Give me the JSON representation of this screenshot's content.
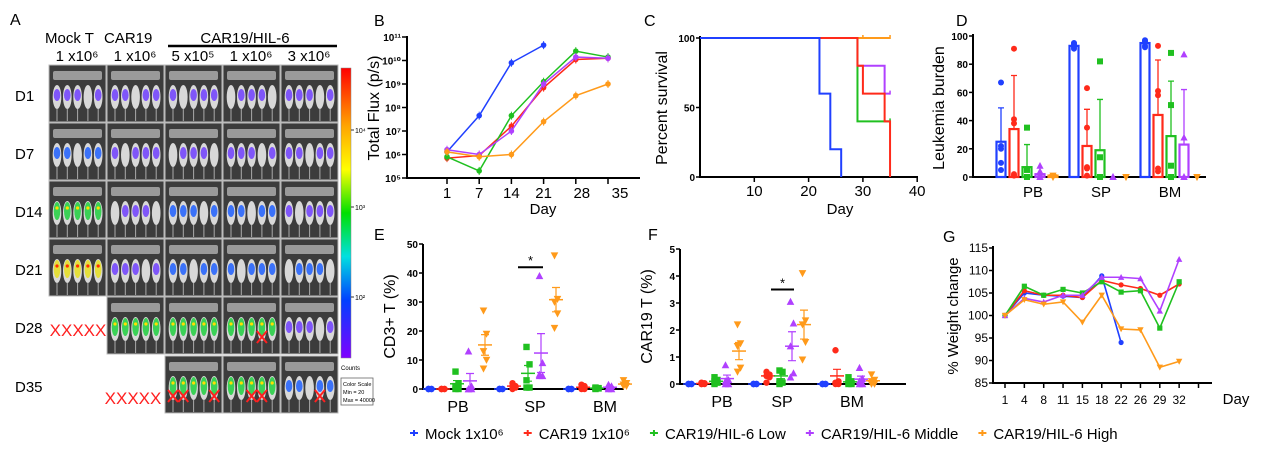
{
  "panel_labels": {
    "A": "A",
    "B": "B",
    "C": "C",
    "D": "D",
    "E": "E",
    "F": "F",
    "G": "G"
  },
  "panel_a": {
    "group_headers": [
      "Mock T",
      "CAR19"
    ],
    "group_header_combined": "CAR19/HIL-6",
    "dose_headers": [
      "1 x10⁶",
      "1 x10⁶",
      "5 x10⁵",
      "1 x10⁶",
      "3 x10⁶"
    ],
    "row_labels": [
      "D1",
      "D7",
      "D14",
      "D21",
      "D28",
      "D35"
    ],
    "missing_marks": {
      "D28": "XXXXX",
      "D35": "XXXXX"
    },
    "deceased_mice": [
      {
        "row": "D28",
        "column": 4,
        "mice": [
          4
        ]
      },
      {
        "row": "D35",
        "column": 3,
        "mice": [
          1,
          2,
          5
        ]
      },
      {
        "row": "D35",
        "column": 4,
        "mice": [
          3,
          4
        ]
      },
      {
        "row": "D35",
        "column": 5,
        "mice": [
          4
        ]
      }
    ],
    "colorbar": {
      "ticks": [
        "10⁴",
        "10³",
        "10²"
      ],
      "unit": "Counts",
      "scale_title": "Color Scale",
      "min": "Min = 20",
      "max": "Max = 40000",
      "colors": [
        "#ff0000",
        "#ffa500",
        "#ffff00",
        "#00e000",
        "#00e0e0",
        "#0040ff",
        "#8000ff"
      ]
    }
  },
  "colors": {
    "mock": "#2040ff",
    "car19": "#ff2a1a",
    "low": "#20c020",
    "middle": "#b040ff",
    "high": "#ff9a1a"
  },
  "legend": [
    {
      "label": "Mock 1x10⁶",
      "color": "#2040ff"
    },
    {
      "label": "CAR19 1x10⁶",
      "color": "#ff2a1a"
    },
    {
      "label": "CAR19/HIL-6 Low",
      "color": "#20c020"
    },
    {
      "label": "CAR19/HIL-6 Middle",
      "color": "#b040ff"
    },
    {
      "label": "CAR19/HIL-6 High",
      "color": "#ff9a1a"
    }
  ],
  "chart_data": [
    {
      "panel": "B",
      "type": "line",
      "ylabel": "Total Flux (p/s)",
      "xlabel": "Day",
      "yscale": "log",
      "ylim": [
        100000.0,
        100000000000.0
      ],
      "y_ticks": [
        "10⁵",
        "10⁶",
        "10⁷",
        "10⁸",
        "10⁹",
        "10¹⁰",
        "10¹¹"
      ],
      "x_ticks": [
        "1",
        "7",
        "14",
        "21",
        "28",
        "35"
      ],
      "series": [
        {
          "name": "Mock 1x10⁶",
          "color": "#2040ff",
          "values": [
            1300000.0,
            45000000.0,
            8000000000.0,
            45000000000.0,
            null,
            null
          ]
        },
        {
          "name": "CAR19 1x10⁶",
          "color": "#ff2a1a",
          "values": [
            700000.0,
            900000.0,
            16000000.0,
            700000000.0,
            11000000000.0,
            12500000000.0
          ]
        },
        {
          "name": "CAR19/HIL-6 Low",
          "color": "#20c020",
          "values": [
            800000.0,
            200000.0,
            45000000.0,
            1250000000.0,
            25000000000.0,
            14000000000.0
          ]
        },
        {
          "name": "CAR19/HIL-6 Middle",
          "color": "#b040ff",
          "values": [
            1600000.0,
            1000000.0,
            10000000.0,
            1000000000.0,
            14000000000.0,
            12500000000.0
          ]
        },
        {
          "name": "CAR19/HIL-6 High",
          "color": "#ff9a1a",
          "values": [
            1300000.0,
            800000.0,
            1000000.0,
            25000000.0,
            320000000.0,
            1000000000.0
          ]
        }
      ]
    },
    {
      "panel": "C",
      "type": "line",
      "subtype": "kaplan-meier",
      "ylabel": "Percent survival",
      "xlabel": "Day",
      "xlim": [
        0,
        40
      ],
      "ylim": [
        0,
        100
      ],
      "x_ticks": [
        "10",
        "20",
        "30",
        "40"
      ],
      "y_ticks": [
        "0",
        "50",
        "100"
      ],
      "series": [
        {
          "name": "Mock 1x10⁶",
          "color": "#2040ff",
          "steps": [
            [
              22,
              60
            ],
            [
              24,
              20
            ],
            [
              26,
              0
            ]
          ],
          "end": 26,
          "censored": []
        },
        {
          "name": "CAR19 1x10⁶",
          "color": "#ff2a1a",
          "steps": [
            [
              29,
              80
            ],
            [
              30,
              60
            ],
            [
              34,
              40
            ],
            [
              35,
              0
            ]
          ],
          "end": 35,
          "censored": []
        },
        {
          "name": "CAR19/HIL-6 Low",
          "color": "#20c020",
          "steps": [
            [
              29,
              40
            ]
          ],
          "end": 35,
          "censored": [
            35
          ]
        },
        {
          "name": "CAR19/HIL-6 Middle",
          "color": "#b040ff",
          "steps": [
            [
              29,
              80
            ],
            [
              34,
              60
            ]
          ],
          "end": 35,
          "censored": [
            35
          ]
        },
        {
          "name": "CAR19/HIL-6 High",
          "color": "#ff9a1a",
          "steps": [],
          "end": 35,
          "censored": [
            30,
            35
          ]
        }
      ]
    },
    {
      "panel": "D",
      "type": "bar",
      "ylabel": "Leukemia burden",
      "ylim": [
        0,
        100
      ],
      "y_ticks": [
        "0",
        "20",
        "40",
        "60",
        "80",
        "100"
      ],
      "categories": [
        "PB",
        "SP",
        "BM"
      ],
      "series": [
        {
          "name": "Mock 1x10⁶",
          "color": "#2040ff",
          "values": [
            25,
            93,
            95
          ],
          "sd": [
            24,
            2,
            2
          ],
          "points": [
            [
              67,
              22,
              20,
              10,
              5
            ],
            [
              95,
              94,
              93,
              92,
              91
            ],
            [
              97,
              96,
              95,
              93,
              92
            ]
          ]
        },
        {
          "name": "CAR19 1x10⁶",
          "color": "#ff2a1a",
          "values": [
            34,
            22,
            44
          ],
          "sd": [
            38,
            26,
            39
          ],
          "points": [
            [
              91,
              41,
              38,
              2,
              1
            ],
            [
              63,
              35,
              7,
              6,
              1
            ],
            [
              93,
              61,
              58,
              6,
              4
            ]
          ]
        },
        {
          "name": "CAR19/HIL-6 Low",
          "color": "#20c020",
          "values": [
            7,
            19,
            29
          ],
          "sd": [
            16,
            36,
            39
          ],
          "points": [
            [
              35,
              5,
              0,
              0,
              0
            ],
            [
              82,
              14,
              0,
              0,
              0
            ],
            [
              88,
              51,
              8,
              0,
              0
            ]
          ]
        },
        {
          "name": "CAR19/HIL-6 Middle",
          "color": "#b040ff",
          "values": [
            2,
            0,
            23
          ],
          "sd": [
            0,
            0,
            39
          ],
          "points": [
            [
              8,
              4,
              2,
              0,
              0
            ],
            [
              0,
              0,
              0,
              0,
              0
            ],
            [
              87,
              28,
              0,
              0,
              0
            ]
          ]
        },
        {
          "name": "CAR19/HIL-6 High",
          "color": "#ff9a1a",
          "values": [
            1,
            0,
            0
          ],
          "sd": [
            0,
            0,
            0
          ],
          "points": [
            [
              1,
              0,
              0,
              0,
              0
            ],
            [
              0,
              0,
              0,
              0,
              0
            ],
            [
              0,
              0,
              0,
              0,
              0
            ]
          ]
        }
      ]
    },
    {
      "panel": "E",
      "type": "scatter",
      "ylabel": "CD3+ T (%)",
      "ylim": [
        0,
        50
      ],
      "y_ticks": [
        "0",
        "10",
        "20",
        "30",
        "40",
        "50"
      ],
      "categories": [
        "PB",
        "SP",
        "BM"
      ],
      "significance": {
        "category": "SP",
        "between": [
          "CAR19/HIL-6 Low",
          "CAR19/HIL-6 Middle"
        ],
        "label": "*",
        "y": 42
      },
      "series": [
        {
          "name": "Mock 1x10⁶",
          "color": "#2040ff",
          "marker": "circle",
          "means": [
            0,
            0,
            0
          ],
          "points": [
            [
              0,
              0,
              0,
              0,
              0
            ],
            [
              0,
              0,
              0,
              0,
              0
            ],
            [
              0,
              0,
              0,
              0,
              0
            ]
          ]
        },
        {
          "name": "CAR19 1x10⁶",
          "color": "#ff2a1a",
          "marker": "circle",
          "means": [
            0,
            1,
            0.6
          ],
          "points": [
            [
              0,
              0,
              0,
              0,
              0
            ],
            [
              2,
              1,
              1,
              0.5,
              0
            ],
            [
              1.5,
              1,
              0.5,
              0,
              0
            ]
          ]
        },
        {
          "name": "CAR19/HIL-6 Low",
          "color": "#20c020",
          "marker": "square",
          "means": [
            1.8,
            5.4,
            0.3
          ],
          "points": [
            [
              6,
              2,
              1,
              0,
              0
            ],
            [
              14.5,
              8.5,
              3,
              0.5,
              0.5
            ],
            [
              0.5,
              0.3,
              0.3,
              0.2,
              0
            ]
          ]
        },
        {
          "name": "CAR19/HIL-6 Middle",
          "color": "#b040ff",
          "marker": "triangle-up",
          "means": [
            2.8,
            12.4,
            0.6
          ],
          "points": [
            [
              13,
              1,
              0,
              0,
              0
            ],
            [
              39,
              9,
              5,
              4.5,
              4.5
            ],
            [
              1.5,
              1,
              0.5,
              0,
              0
            ]
          ]
        },
        {
          "name": "CAR19/HIL-6 High",
          "color": "#ff9a1a",
          "marker": "triangle-down",
          "means": [
            15.2,
            30.8,
            1.7
          ],
          "points": [
            [
              27,
              19,
              13,
              10,
              7
            ],
            [
              46,
              31,
              30,
              26,
              21
            ],
            [
              3,
              2,
              1.5,
              1,
              1
            ]
          ]
        }
      ]
    },
    {
      "panel": "F",
      "type": "scatter",
      "ylabel": "CAR19 T (%)",
      "ylim": [
        0,
        5
      ],
      "y_ticks": [
        "0",
        "1",
        "2",
        "3",
        "4",
        "5"
      ],
      "categories": [
        "PB",
        "SP",
        "BM"
      ],
      "significance": {
        "category": "SP",
        "between": [
          "CAR19/HIL-6 Low",
          "CAR19/HIL-6 Middle"
        ],
        "label": "*",
        "y": 3.5
      },
      "series": [
        {
          "name": "Mock 1x10⁶",
          "color": "#2040ff",
          "marker": "circle",
          "means": [
            0,
            0,
            0
          ],
          "points": [
            [
              0,
              0,
              0,
              0,
              0
            ],
            [
              0,
              0,
              0,
              0,
              0
            ],
            [
              0,
              0,
              0,
              0,
              0
            ]
          ]
        },
        {
          "name": "CAR19 1x10⁶",
          "color": "#ff2a1a",
          "marker": "circle",
          "means": [
            0.02,
            0.3,
            0.3
          ],
          "points": [
            [
              0.05,
              0.03,
              0,
              0,
              0
            ],
            [
              0.45,
              0.35,
              0.3,
              0.25,
              0.05
            ],
            [
              1.25,
              0.1,
              0.05,
              0,
              0
            ]
          ]
        },
        {
          "name": "CAR19/HIL-6 Low",
          "color": "#20c020",
          "marker": "square",
          "means": [
            0.1,
            0.3,
            0.08
          ],
          "points": [
            [
              0.25,
              0.15,
              0.1,
              0.05,
              0
            ],
            [
              0.5,
              0.45,
              0.1,
              0.05,
              0
            ],
            [
              0.25,
              0.1,
              0.05,
              0,
              0
            ]
          ]
        },
        {
          "name": "CAR19/HIL-6 Middle",
          "color": "#b040ff",
          "marker": "triangle-up",
          "means": [
            0.2,
            1.4,
            0.18
          ],
          "points": [
            [
              0.7,
              0.15,
              0.1,
              0,
              0
            ],
            [
              3.05,
              2.25,
              1.4,
              0.4,
              0.25
            ],
            [
              0.6,
              0.2,
              0.1,
              0,
              0
            ]
          ]
        },
        {
          "name": "CAR19/HIL-6 High",
          "color": "#ff9a1a",
          "marker": "triangle-down",
          "means": [
            1.22,
            2.2,
            0.12
          ],
          "points": [
            [
              2.2,
              1.5,
              1.4,
              0.6,
              0.45
            ],
            [
              4.1,
              2.35,
              2.2,
              1.55,
              0.9
            ],
            [
              0.35,
              0.15,
              0.1,
              0,
              0
            ]
          ]
        }
      ]
    },
    {
      "panel": "G",
      "type": "line",
      "ylabel": "% Weight change",
      "xlabel": "Day",
      "ylim": [
        85,
        115
      ],
      "y_ticks": [
        "85",
        "90",
        "95",
        "100",
        "105",
        "110",
        "115"
      ],
      "x_ticks": [
        "1",
        "4",
        "8",
        "11",
        "15",
        "18",
        "22",
        "26",
        "29",
        "32"
      ],
      "series": [
        {
          "name": "Mock 1x10⁶",
          "color": "#2040ff",
          "values": [
            100,
            105,
            104.5,
            104.3,
            104,
            108.8,
            94,
            null,
            null,
            null
          ]
        },
        {
          "name": "CAR19 1x10⁶",
          "color": "#ff2a1a",
          "values": [
            100,
            105.5,
            104.5,
            104.5,
            104,
            107.8,
            106.8,
            106,
            104.5,
            107
          ]
        },
        {
          "name": "CAR19/HIL-6 Low",
          "color": "#20c020",
          "values": [
            100,
            106.5,
            104.5,
            105.8,
            105,
            107.5,
            105.2,
            105.5,
            97.2,
            107.5
          ]
        },
        {
          "name": "CAR19/HIL-6 Middle",
          "color": "#b040ff",
          "values": [
            100,
            103.8,
            103,
            104.5,
            104.5,
            108.5,
            108.5,
            108.2,
            101,
            112.5
          ]
        },
        {
          "name": "CAR19/HIL-6 High",
          "color": "#ff9a1a",
          "values": [
            100,
            103.5,
            102.5,
            103,
            98.5,
            104.5,
            97,
            96.8,
            88.5,
            89.8
          ]
        }
      ]
    }
  ]
}
